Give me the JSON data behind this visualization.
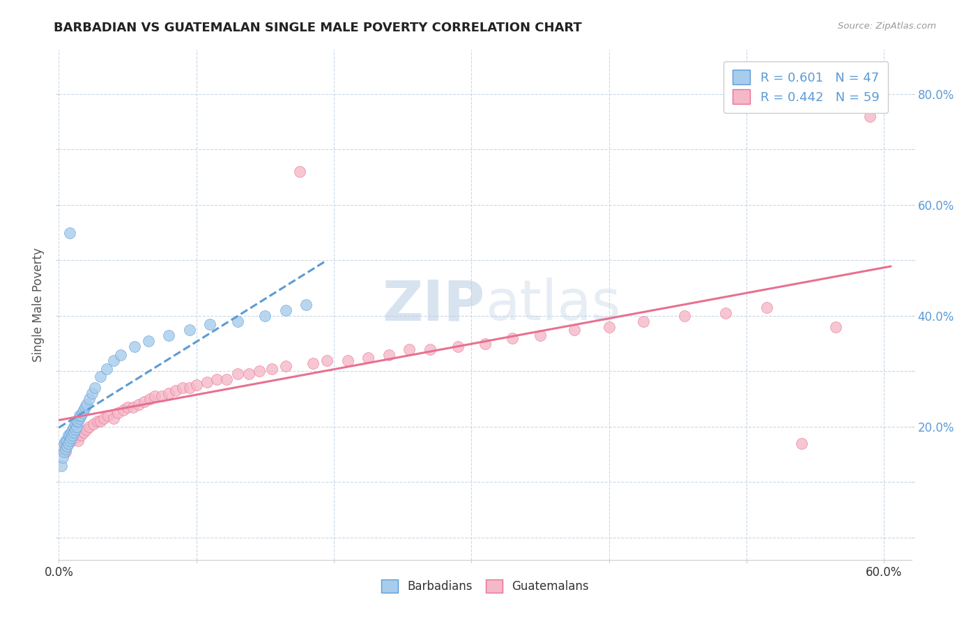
{
  "title": "BARBADIAN VS GUATEMALAN SINGLE MALE POVERTY CORRELATION CHART",
  "source_text": "Source: ZipAtlas.com",
  "ylabel": "Single Male Poverty",
  "xlim": [
    0.0,
    0.62
  ],
  "ylim": [
    -0.04,
    0.88
  ],
  "x_tick_positions": [
    0.0,
    0.1,
    0.2,
    0.3,
    0.4,
    0.5,
    0.6
  ],
  "x_tick_labels": [
    "0.0%",
    "",
    "",
    "",
    "",
    "",
    "60.0%"
  ],
  "y_tick_positions": [
    0.0,
    0.1,
    0.2,
    0.3,
    0.4,
    0.5,
    0.6,
    0.7,
    0.8
  ],
  "y_tick_labels_right": [
    "",
    "",
    "20.0%",
    "",
    "40.0%",
    "",
    "60.0%",
    "",
    "80.0%"
  ],
  "barbadian_R": 0.601,
  "barbadian_N": 47,
  "guatemalan_R": 0.442,
  "guatemalan_N": 59,
  "barbadian_color": "#A8CCEC",
  "guatemalan_color": "#F5B8C8",
  "barbadian_edge_color": "#5B9BD5",
  "guatemalan_edge_color": "#E87090",
  "barbadian_trend_color": "#5B9BD5",
  "guatemalan_trend_color": "#E87090",
  "background_color": "#FFFFFF",
  "grid_color": "#C8D8E8",
  "legend_r_n_color": "#5B9BD5",
  "right_tick_color": "#5B9BD5",
  "watermark_color": "#D0DFF0",
  "barbadian_x": [
    0.002,
    0.003,
    0.004,
    0.004,
    0.005,
    0.005,
    0.006,
    0.006,
    0.007,
    0.007,
    0.008,
    0.008,
    0.009,
    0.009,
    0.01,
    0.01,
    0.011,
    0.011,
    0.012,
    0.012,
    0.013,
    0.013,
    0.014,
    0.015,
    0.015,
    0.016,
    0.017,
    0.018,
    0.019,
    0.02,
    0.022,
    0.024,
    0.026,
    0.03,
    0.035,
    0.04,
    0.045,
    0.055,
    0.065,
    0.08,
    0.095,
    0.11,
    0.13,
    0.15,
    0.165,
    0.18,
    0.008
  ],
  "barbadian_y": [
    0.13,
    0.145,
    0.155,
    0.17,
    0.16,
    0.175,
    0.165,
    0.175,
    0.17,
    0.185,
    0.175,
    0.185,
    0.18,
    0.19,
    0.185,
    0.195,
    0.19,
    0.2,
    0.195,
    0.205,
    0.2,
    0.21,
    0.21,
    0.215,
    0.22,
    0.22,
    0.225,
    0.23,
    0.235,
    0.24,
    0.25,
    0.26,
    0.27,
    0.29,
    0.305,
    0.32,
    0.33,
    0.345,
    0.355,
    0.365,
    0.375,
    0.385,
    0.39,
    0.4,
    0.41,
    0.42,
    0.55
  ],
  "guatemalan_x": [
    0.003,
    0.005,
    0.007,
    0.009,
    0.012,
    0.014,
    0.016,
    0.018,
    0.02,
    0.022,
    0.025,
    0.028,
    0.03,
    0.033,
    0.036,
    0.04,
    0.043,
    0.047,
    0.05,
    0.054,
    0.058,
    0.062,
    0.066,
    0.07,
    0.075,
    0.08,
    0.085,
    0.09,
    0.095,
    0.1,
    0.108,
    0.115,
    0.122,
    0.13,
    0.138,
    0.146,
    0.155,
    0.165,
    0.175,
    0.185,
    0.195,
    0.21,
    0.225,
    0.24,
    0.255,
    0.27,
    0.29,
    0.31,
    0.33,
    0.35,
    0.375,
    0.4,
    0.425,
    0.455,
    0.485,
    0.515,
    0.54,
    0.565,
    0.59
  ],
  "guatemalan_y": [
    0.165,
    0.155,
    0.17,
    0.175,
    0.18,
    0.175,
    0.185,
    0.19,
    0.195,
    0.2,
    0.205,
    0.21,
    0.21,
    0.215,
    0.22,
    0.215,
    0.225,
    0.23,
    0.235,
    0.235,
    0.24,
    0.245,
    0.25,
    0.255,
    0.255,
    0.26,
    0.265,
    0.27,
    0.27,
    0.275,
    0.28,
    0.285,
    0.285,
    0.295,
    0.295,
    0.3,
    0.305,
    0.31,
    0.66,
    0.315,
    0.32,
    0.32,
    0.325,
    0.33,
    0.34,
    0.34,
    0.345,
    0.35,
    0.36,
    0.365,
    0.375,
    0.38,
    0.39,
    0.4,
    0.405,
    0.415,
    0.17,
    0.38,
    0.76
  ],
  "barbadian_trend_x": [
    0.0,
    0.195
  ],
  "guatemalan_trend_x": [
    0.0,
    0.605
  ]
}
